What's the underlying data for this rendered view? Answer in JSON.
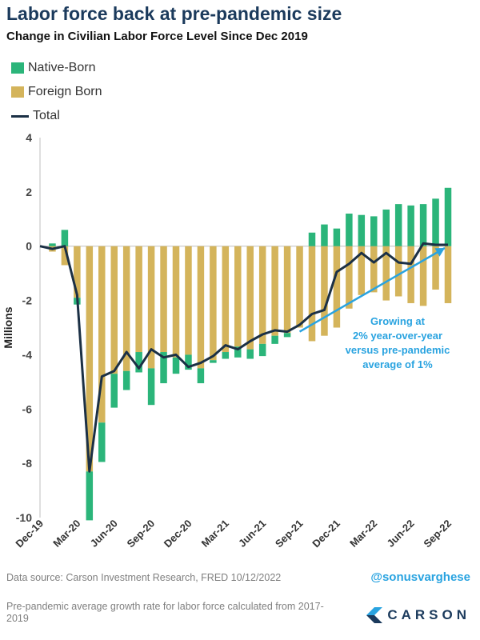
{
  "header": {
    "title": "Labor force back at pre-pandemic size",
    "subtitle": "Change in Civilian Labor Force Level Since Dec 2019"
  },
  "colors": {
    "native": "#2bb57a",
    "foreign": "#d4b45b",
    "total": "#1b3045",
    "annotation": "#29a3e0"
  },
  "chart_data": {
    "type": "bar",
    "stacked": true,
    "ylabel": "Millions",
    "xlabel": "",
    "ylim": [
      -10,
      4
    ],
    "yticks": [
      4,
      2,
      0,
      -2,
      -4,
      -6,
      -8,
      -10
    ],
    "grid": false,
    "legend_position": "top-left",
    "categories": [
      "Dec-19",
      "Jan-20",
      "Feb-20",
      "Mar-20",
      "Apr-20",
      "May-20",
      "Jun-20",
      "Jul-20",
      "Aug-20",
      "Sep-20",
      "Oct-20",
      "Nov-20",
      "Dec-20",
      "Jan-21",
      "Feb-21",
      "Mar-21",
      "Apr-21",
      "May-21",
      "Jun-21",
      "Jul-21",
      "Aug-21",
      "Sep-21",
      "Oct-21",
      "Nov-21",
      "Dec-21",
      "Jan-22",
      "Feb-22",
      "Mar-22",
      "Apr-22",
      "May-22",
      "Jun-22",
      "Jul-22",
      "Aug-22",
      "Sep-22"
    ],
    "tick_labels": [
      "Dec-19",
      "Mar-20",
      "Jun-20",
      "Sep-20",
      "Dec-20",
      "Mar-21",
      "Jun-21",
      "Sep-21",
      "Dec-21",
      "Mar-22",
      "Jun-22",
      "Sep-22"
    ],
    "series": [
      {
        "name": "Native-Born",
        "type": "bar",
        "values": [
          0,
          0.1,
          0.6,
          -0.25,
          -1.8,
          -1.45,
          -1.25,
          -0.7,
          -0.75,
          -1.35,
          -1.15,
          -0.6,
          -0.55,
          -0.55,
          -0.1,
          -0.25,
          -0.4,
          -0.35,
          -0.45,
          -0.3,
          -0.15,
          0,
          0.5,
          0.8,
          0.65,
          1.2,
          1.15,
          1.1,
          1.35,
          1.55,
          1.5,
          1.55,
          1.75,
          2.15
        ]
      },
      {
        "name": "Foreign Born",
        "type": "bar",
        "values": [
          0,
          -0.2,
          -0.7,
          -1.9,
          -8.3,
          -6.5,
          -4.7,
          -4.6,
          -3.9,
          -4.5,
          -3.9,
          -4.1,
          -4.0,
          -4.5,
          -4.2,
          -3.9,
          -3.7,
          -3.8,
          -3.6,
          -3.3,
          -3.2,
          -3.0,
          -3.5,
          -3.3,
          -3.0,
          -2.3,
          -1.8,
          -1.7,
          -2.0,
          -1.85,
          -2.1,
          -2.2,
          -1.6,
          -2.1
        ]
      },
      {
        "name": "Total",
        "type": "line",
        "values": [
          0,
          -0.1,
          0,
          -1.8,
          -8.3,
          -4.8,
          -4.6,
          -3.9,
          -4.5,
          -3.8,
          -4.1,
          -4.0,
          -4.45,
          -4.3,
          -4.05,
          -3.65,
          -3.8,
          -3.5,
          -3.25,
          -3.1,
          -3.15,
          -2.9,
          -2.5,
          -2.35,
          -0.95,
          -0.65,
          -0.25,
          -0.6,
          -0.25,
          -0.6,
          -0.65,
          0.1,
          0.05,
          0.05
        ]
      }
    ],
    "annotation": {
      "text_lines": [
        "Growing at",
        "2% year-over-year",
        "versus pre-pandemic",
        "average of 1%"
      ],
      "arrow_from": {
        "x": "Sep-21",
        "y": -3.15
      },
      "arrow_to": {
        "x": "Sep-22",
        "y": 0.05
      }
    }
  },
  "footer": {
    "source": "Data source: Carson Investment Research, FRED    10/12/2022",
    "handle": "@sonusvarghese",
    "note": "Pre-pandemic average growth rate for labor force calculated from 2017-2019",
    "logo_text": "CARSON"
  }
}
